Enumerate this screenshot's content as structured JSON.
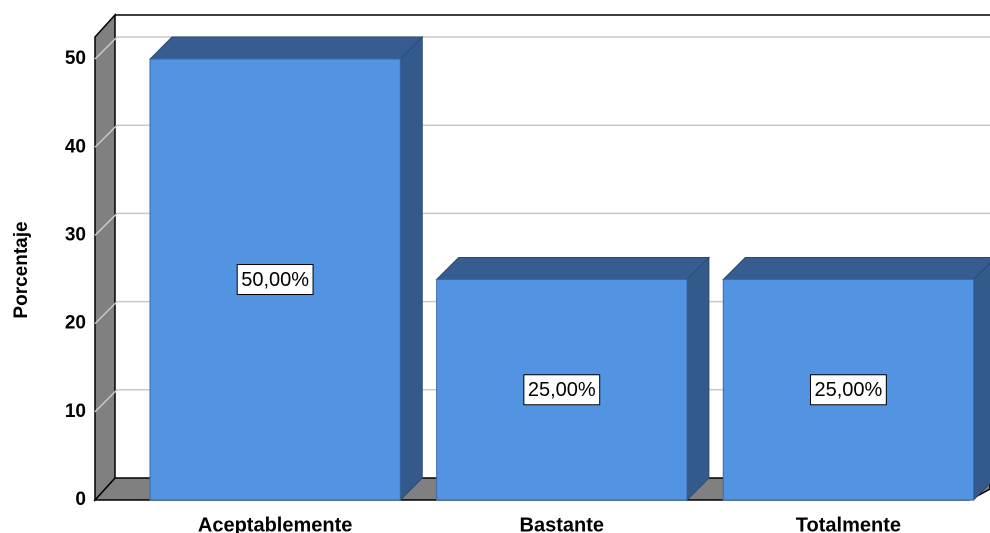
{
  "chart_data": {
    "type": "bar3d",
    "y_label": "Porcentaje",
    "categories": [
      "Aceptablemente",
      "Bastante",
      "Totalmente"
    ],
    "values": [
      50,
      25,
      25
    ],
    "value_labels": [
      "50,00%",
      "25,00%",
      "25,00%"
    ],
    "color": "#5294e2",
    "ylim": [
      0,
      52.5
    ],
    "yticks": [
      0,
      10,
      20,
      30,
      40,
      50
    ],
    "grid": true
  }
}
